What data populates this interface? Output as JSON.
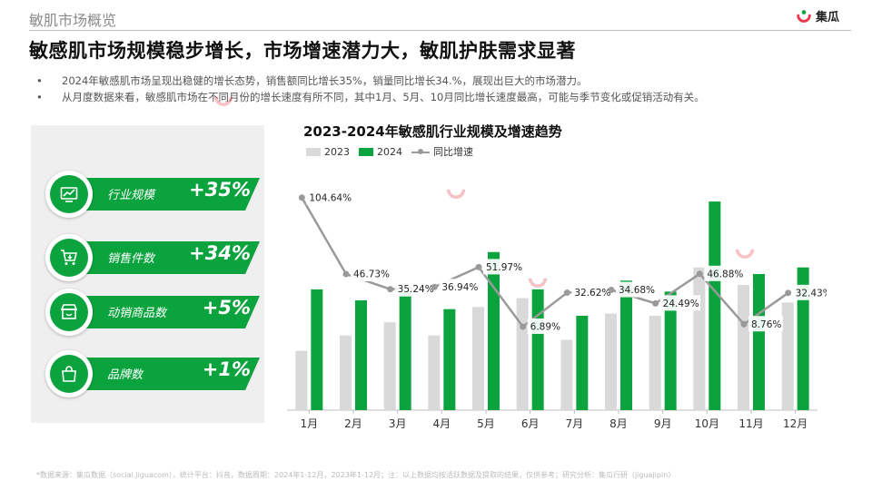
{
  "header": {
    "section_title": "敏肌市场概览",
    "logo_text": "集瓜",
    "headline": "敏感肌市场规模稳步增长，市场增速潜力大，敏肌护肤需求显著"
  },
  "bullets": [
    "2024年敏感肌市场呈现出稳健的增长态势，销售额同比增长35%，销量同比增长34.%，展现出巨大的市场潜力。",
    "从月度数据来看，敏感肌市场在不同月份的增长速度有所不同，其中1月、5月、10月同比增长速度最高，可能与季节变化或促销活动有关。"
  ],
  "kpis": [
    {
      "label": "行业规模",
      "value": "+35%",
      "icon": "trend-chart-icon"
    },
    {
      "label": "销售件数",
      "value": "+34%",
      "icon": "cart-icon"
    },
    {
      "label": "动销商品数",
      "value": "+5%",
      "icon": "store-icon"
    },
    {
      "label": "品牌数",
      "value": "+1%",
      "icon": "bag-icon"
    }
  ],
  "colors": {
    "accent_green": "#0aa33e",
    "bar_2023": "#d9d9d9",
    "bar_2024": "#0aa33e",
    "line": "#9a9a9a"
  },
  "chart_data": {
    "type": "bar",
    "title": "2023-2024年敏感肌行业规模及增速趋势",
    "categories": [
      "1月",
      "2月",
      "3月",
      "4月",
      "5月",
      "6月",
      "7月",
      "8月",
      "9月",
      "10月",
      "11月",
      "12月"
    ],
    "series": [
      {
        "name": "2023",
        "values": [
          27,
          34,
          40,
          34,
          47,
          51,
          32,
          44,
          43,
          65,
          57,
          49
        ]
      },
      {
        "name": "2024",
        "values": [
          55,
          50,
          54,
          46,
          72,
          55,
          43,
          59,
          54,
          95,
          62,
          65
        ]
      }
    ],
    "line": {
      "name": "同比增速",
      "values": [
        104.64,
        46.73,
        35.24,
        36.94,
        51.97,
        6.89,
        32.62,
        34.68,
        24.49,
        46.88,
        8.76,
        32.43
      ],
      "labels": [
        "104.64%",
        "46.73%",
        "35.24%",
        "36.94%",
        "51.97%",
        "6.89%",
        "32.62%",
        "34.68%",
        "24.49%",
        "46.88%",
        "8.76%",
        "32.43%"
      ]
    },
    "legend": [
      "2023",
      "2024",
      "同比增速"
    ],
    "legend_position": "top-left",
    "grid": false
  },
  "footnote": "*数据来源：集瓜数据（social.jiguacom），统计平台：抖音，数据周期：2024年1-12月，2023年1-12月；注：以上数据均按活跃数据及提取的结果，仅供参考；研究分析：集瓜行研（jiguajipin）"
}
